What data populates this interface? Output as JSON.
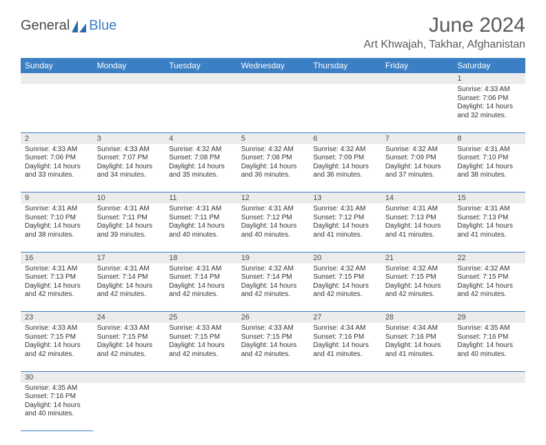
{
  "logo": {
    "general": "General",
    "blue": "Blue"
  },
  "title": "June 2024",
  "location": "Art Khwajah, Takhar, Afghanistan",
  "colors": {
    "header_bg": "#3b7fc4",
    "header_text": "#ffffff",
    "daynum_bg": "#ececec",
    "border": "#3b7fc4",
    "title_color": "#595959"
  },
  "day_headers": [
    "Sunday",
    "Monday",
    "Tuesday",
    "Wednesday",
    "Thursday",
    "Friday",
    "Saturday"
  ],
  "weeks": [
    [
      null,
      null,
      null,
      null,
      null,
      null,
      {
        "n": "1",
        "sr": "Sunrise: 4:33 AM",
        "ss": "Sunset: 7:06 PM",
        "d1": "Daylight: 14 hours",
        "d2": "and 32 minutes."
      }
    ],
    [
      {
        "n": "2",
        "sr": "Sunrise: 4:33 AM",
        "ss": "Sunset: 7:06 PM",
        "d1": "Daylight: 14 hours",
        "d2": "and 33 minutes."
      },
      {
        "n": "3",
        "sr": "Sunrise: 4:33 AM",
        "ss": "Sunset: 7:07 PM",
        "d1": "Daylight: 14 hours",
        "d2": "and 34 minutes."
      },
      {
        "n": "4",
        "sr": "Sunrise: 4:32 AM",
        "ss": "Sunset: 7:08 PM",
        "d1": "Daylight: 14 hours",
        "d2": "and 35 minutes."
      },
      {
        "n": "5",
        "sr": "Sunrise: 4:32 AM",
        "ss": "Sunset: 7:08 PM",
        "d1": "Daylight: 14 hours",
        "d2": "and 36 minutes."
      },
      {
        "n": "6",
        "sr": "Sunrise: 4:32 AM",
        "ss": "Sunset: 7:09 PM",
        "d1": "Daylight: 14 hours",
        "d2": "and 36 minutes."
      },
      {
        "n": "7",
        "sr": "Sunrise: 4:32 AM",
        "ss": "Sunset: 7:09 PM",
        "d1": "Daylight: 14 hours",
        "d2": "and 37 minutes."
      },
      {
        "n": "8",
        "sr": "Sunrise: 4:31 AM",
        "ss": "Sunset: 7:10 PM",
        "d1": "Daylight: 14 hours",
        "d2": "and 38 minutes."
      }
    ],
    [
      {
        "n": "9",
        "sr": "Sunrise: 4:31 AM",
        "ss": "Sunset: 7:10 PM",
        "d1": "Daylight: 14 hours",
        "d2": "and 38 minutes."
      },
      {
        "n": "10",
        "sr": "Sunrise: 4:31 AM",
        "ss": "Sunset: 7:11 PM",
        "d1": "Daylight: 14 hours",
        "d2": "and 39 minutes."
      },
      {
        "n": "11",
        "sr": "Sunrise: 4:31 AM",
        "ss": "Sunset: 7:11 PM",
        "d1": "Daylight: 14 hours",
        "d2": "and 40 minutes."
      },
      {
        "n": "12",
        "sr": "Sunrise: 4:31 AM",
        "ss": "Sunset: 7:12 PM",
        "d1": "Daylight: 14 hours",
        "d2": "and 40 minutes."
      },
      {
        "n": "13",
        "sr": "Sunrise: 4:31 AM",
        "ss": "Sunset: 7:12 PM",
        "d1": "Daylight: 14 hours",
        "d2": "and 41 minutes."
      },
      {
        "n": "14",
        "sr": "Sunrise: 4:31 AM",
        "ss": "Sunset: 7:13 PM",
        "d1": "Daylight: 14 hours",
        "d2": "and 41 minutes."
      },
      {
        "n": "15",
        "sr": "Sunrise: 4:31 AM",
        "ss": "Sunset: 7:13 PM",
        "d1": "Daylight: 14 hours",
        "d2": "and 41 minutes."
      }
    ],
    [
      {
        "n": "16",
        "sr": "Sunrise: 4:31 AM",
        "ss": "Sunset: 7:13 PM",
        "d1": "Daylight: 14 hours",
        "d2": "and 42 minutes."
      },
      {
        "n": "17",
        "sr": "Sunrise: 4:31 AM",
        "ss": "Sunset: 7:14 PM",
        "d1": "Daylight: 14 hours",
        "d2": "and 42 minutes."
      },
      {
        "n": "18",
        "sr": "Sunrise: 4:31 AM",
        "ss": "Sunset: 7:14 PM",
        "d1": "Daylight: 14 hours",
        "d2": "and 42 minutes."
      },
      {
        "n": "19",
        "sr": "Sunrise: 4:32 AM",
        "ss": "Sunset: 7:14 PM",
        "d1": "Daylight: 14 hours",
        "d2": "and 42 minutes."
      },
      {
        "n": "20",
        "sr": "Sunrise: 4:32 AM",
        "ss": "Sunset: 7:15 PM",
        "d1": "Daylight: 14 hours",
        "d2": "and 42 minutes."
      },
      {
        "n": "21",
        "sr": "Sunrise: 4:32 AM",
        "ss": "Sunset: 7:15 PM",
        "d1": "Daylight: 14 hours",
        "d2": "and 42 minutes."
      },
      {
        "n": "22",
        "sr": "Sunrise: 4:32 AM",
        "ss": "Sunset: 7:15 PM",
        "d1": "Daylight: 14 hours",
        "d2": "and 42 minutes."
      }
    ],
    [
      {
        "n": "23",
        "sr": "Sunrise: 4:33 AM",
        "ss": "Sunset: 7:15 PM",
        "d1": "Daylight: 14 hours",
        "d2": "and 42 minutes."
      },
      {
        "n": "24",
        "sr": "Sunrise: 4:33 AM",
        "ss": "Sunset: 7:15 PM",
        "d1": "Daylight: 14 hours",
        "d2": "and 42 minutes."
      },
      {
        "n": "25",
        "sr": "Sunrise: 4:33 AM",
        "ss": "Sunset: 7:15 PM",
        "d1": "Daylight: 14 hours",
        "d2": "and 42 minutes."
      },
      {
        "n": "26",
        "sr": "Sunrise: 4:33 AM",
        "ss": "Sunset: 7:15 PM",
        "d1": "Daylight: 14 hours",
        "d2": "and 42 minutes."
      },
      {
        "n": "27",
        "sr": "Sunrise: 4:34 AM",
        "ss": "Sunset: 7:16 PM",
        "d1": "Daylight: 14 hours",
        "d2": "and 41 minutes."
      },
      {
        "n": "28",
        "sr": "Sunrise: 4:34 AM",
        "ss": "Sunset: 7:16 PM",
        "d1": "Daylight: 14 hours",
        "d2": "and 41 minutes."
      },
      {
        "n": "29",
        "sr": "Sunrise: 4:35 AM",
        "ss": "Sunset: 7:16 PM",
        "d1": "Daylight: 14 hours",
        "d2": "and 40 minutes."
      }
    ],
    [
      {
        "n": "30",
        "sr": "Sunrise: 4:35 AM",
        "ss": "Sunset: 7:16 PM",
        "d1": "Daylight: 14 hours",
        "d2": "and 40 minutes."
      },
      null,
      null,
      null,
      null,
      null,
      null
    ]
  ]
}
